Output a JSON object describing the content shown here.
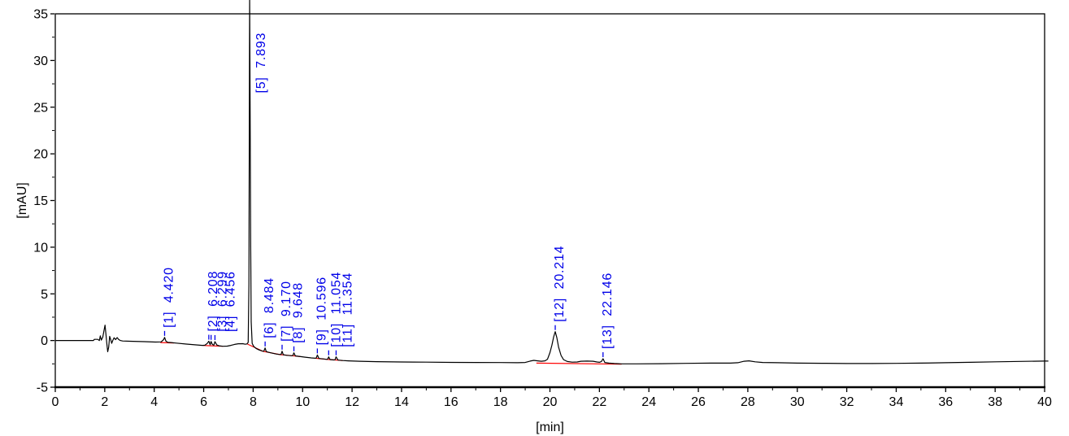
{
  "chart_data": {
    "type": "line",
    "title": "",
    "xlabel": "[min]",
    "ylabel": "[mAU]",
    "xlim": [
      0,
      40
    ],
    "ylim": [
      -5,
      35
    ],
    "x_major_ticks": [
      0,
      2,
      4,
      6,
      8,
      10,
      12,
      14,
      16,
      18,
      20,
      22,
      24,
      26,
      28,
      30,
      32,
      34,
      36,
      38,
      40
    ],
    "x_minor_step": 1,
    "y_major_ticks": [
      -5,
      0,
      5,
      10,
      15,
      20,
      25,
      30,
      35
    ],
    "y_minor_step": 2.5,
    "grid": false,
    "legend": "none",
    "colors": {
      "trace": "#000000",
      "axis": "#000000",
      "peak_label": "#0000e8",
      "integration_baseline": "#ff0000",
      "background": "#ffffff"
    },
    "peaks": [
      {
        "id": "[1]",
        "rt": "4.420",
        "t": 4.42,
        "apex": 0.33,
        "dx": 0
      },
      {
        "id": "[2]",
        "rt": "6.208",
        "t": 6.208,
        "apex": -0.08,
        "dx": 0
      },
      {
        "id": "[3]",
        "rt": "6.299",
        "t": 6.299,
        "apex": -0.1,
        "dx": 9
      },
      {
        "id": "[4]",
        "rt": "6.456",
        "t": 6.456,
        "apex": -0.12,
        "dx": 14
      },
      {
        "id": "[5]",
        "rt": "7.893",
        "t": 7.893,
        "apex": 37.0,
        "dx": 8,
        "ly": 26.5
      },
      {
        "id": "[6]",
        "rt": "8.484",
        "t": 8.484,
        "apex": -0.8,
        "dx": 0
      },
      {
        "id": "[7]",
        "rt": "9.170",
        "t": 9.17,
        "apex": -1.15,
        "dx": 0
      },
      {
        "id": "[8]",
        "rt": "9.648",
        "t": 9.648,
        "apex": -1.32,
        "dx": 0
      },
      {
        "id": "[9]",
        "rt": "10.596",
        "t": 10.596,
        "apex": -1.55,
        "dx": 0
      },
      {
        "id": "[10]",
        "rt": "11.054",
        "t": 11.054,
        "apex": -1.75,
        "dx": 4
      },
      {
        "id": "[11]",
        "rt": "11.354",
        "t": 11.354,
        "apex": -1.75,
        "dx": 9
      },
      {
        "id": "[12]",
        "rt": "20.214",
        "t": 20.214,
        "apex": 0.95,
        "dx": 0
      },
      {
        "id": "[13]",
        "rt": "22.146",
        "t": 22.146,
        "apex": -1.95,
        "dx": 0
      }
    ],
    "trace": [
      [
        0.0,
        0.0
      ],
      [
        1.54,
        0.0
      ],
      [
        1.58,
        0.12
      ],
      [
        1.72,
        0.12
      ],
      [
        1.78,
        0.0
      ],
      [
        1.82,
        0.5
      ],
      [
        1.86,
        0.05
      ],
      [
        1.92,
        0.35
      ],
      [
        1.97,
        1.05
      ],
      [
        2.01,
        1.65
      ],
      [
        2.05,
        0.6
      ],
      [
        2.08,
        -0.25
      ],
      [
        2.12,
        -1.2
      ],
      [
        2.16,
        -0.7
      ],
      [
        2.2,
        0.45
      ],
      [
        2.24,
        0.1
      ],
      [
        2.28,
        -0.3
      ],
      [
        2.33,
        0.05
      ],
      [
        2.38,
        0.3
      ],
      [
        2.44,
        0.1
      ],
      [
        2.5,
        0.32
      ],
      [
        2.56,
        0.12
      ],
      [
        2.63,
        0.0
      ],
      [
        2.72,
        -0.05
      ],
      [
        3.0,
        -0.08
      ],
      [
        3.6,
        -0.12
      ],
      [
        4.05,
        -0.16
      ],
      [
        4.28,
        -0.15
      ],
      [
        4.38,
        0.1
      ],
      [
        4.42,
        0.33
      ],
      [
        4.47,
        -0.05
      ],
      [
        4.55,
        -0.2
      ],
      [
        4.68,
        -0.22
      ],
      [
        4.9,
        -0.28
      ],
      [
        5.3,
        -0.38
      ],
      [
        5.7,
        -0.47
      ],
      [
        5.95,
        -0.52
      ],
      [
        6.05,
        -0.5
      ],
      [
        6.14,
        -0.32
      ],
      [
        6.208,
        -0.08
      ],
      [
        6.26,
        -0.45
      ],
      [
        6.299,
        -0.1
      ],
      [
        6.35,
        -0.42
      ],
      [
        6.41,
        -0.5
      ],
      [
        6.456,
        -0.12
      ],
      [
        6.53,
        -0.48
      ],
      [
        6.62,
        -0.56
      ],
      [
        6.78,
        -0.62
      ],
      [
        6.95,
        -0.6
      ],
      [
        7.1,
        -0.52
      ],
      [
        7.25,
        -0.42
      ],
      [
        7.4,
        -0.35
      ],
      [
        7.58,
        -0.34
      ],
      [
        7.68,
        -0.4
      ],
      [
        7.75,
        -0.36
      ],
      [
        7.8,
        -0.2
      ],
      [
        7.83,
        6.0
      ],
      [
        7.86,
        37.0
      ],
      [
        7.9,
        10.0
      ],
      [
        7.92,
        2.0
      ],
      [
        7.96,
        -0.3
      ],
      [
        8.02,
        -0.62
      ],
      [
        8.12,
        -0.85
      ],
      [
        8.25,
        -1.02
      ],
      [
        8.38,
        -1.14
      ],
      [
        8.43,
        -1.15
      ],
      [
        8.484,
        -0.8
      ],
      [
        8.53,
        -1.18
      ],
      [
        8.62,
        -1.26
      ],
      [
        8.78,
        -1.36
      ],
      [
        8.95,
        -1.45
      ],
      [
        9.08,
        -1.5
      ],
      [
        9.13,
        -1.48
      ],
      [
        9.17,
        -1.15
      ],
      [
        9.22,
        -1.52
      ],
      [
        9.36,
        -1.58
      ],
      [
        9.56,
        -1.63
      ],
      [
        9.6,
        -1.62
      ],
      [
        9.648,
        -1.32
      ],
      [
        9.71,
        -1.65
      ],
      [
        9.86,
        -1.7
      ],
      [
        10.1,
        -1.78
      ],
      [
        10.35,
        -1.86
      ],
      [
        10.51,
        -1.9
      ],
      [
        10.55,
        -1.88
      ],
      [
        10.596,
        -1.55
      ],
      [
        10.66,
        -1.92
      ],
      [
        10.82,
        -1.97
      ],
      [
        10.98,
        -2.02
      ],
      [
        11.01,
        -2.0
      ],
      [
        11.054,
        -1.75
      ],
      [
        11.11,
        -2.04
      ],
      [
        11.25,
        -2.08
      ],
      [
        11.31,
        -2.06
      ],
      [
        11.354,
        -1.75
      ],
      [
        11.43,
        -2.1
      ],
      [
        11.62,
        -2.14
      ],
      [
        11.85,
        -2.18
      ],
      [
        12.3,
        -2.22
      ],
      [
        13.0,
        -2.26
      ],
      [
        14.0,
        -2.3
      ],
      [
        15.0,
        -2.32
      ],
      [
        16.0,
        -2.34
      ],
      [
        17.0,
        -2.35
      ],
      [
        18.0,
        -2.36
      ],
      [
        18.7,
        -2.38
      ],
      [
        19.0,
        -2.35
      ],
      [
        19.2,
        -2.2
      ],
      [
        19.35,
        -2.12
      ],
      [
        19.5,
        -2.18
      ],
      [
        19.65,
        -2.22
      ],
      [
        19.8,
        -2.18
      ],
      [
        19.9,
        -2.0
      ],
      [
        20.0,
        -1.3
      ],
      [
        20.08,
        -0.5
      ],
      [
        20.15,
        0.4
      ],
      [
        20.214,
        0.95
      ],
      [
        20.28,
        0.3
      ],
      [
        20.35,
        -0.7
      ],
      [
        20.45,
        -1.6
      ],
      [
        20.55,
        -2.05
      ],
      [
        20.7,
        -2.25
      ],
      [
        20.9,
        -2.32
      ],
      [
        21.1,
        -2.3
      ],
      [
        21.25,
        -2.22
      ],
      [
        21.5,
        -2.2
      ],
      [
        21.75,
        -2.22
      ],
      [
        21.9,
        -2.3
      ],
      [
        22.0,
        -2.33
      ],
      [
        22.08,
        -2.25
      ],
      [
        22.146,
        -1.95
      ],
      [
        22.22,
        -2.35
      ],
      [
        22.38,
        -2.42
      ],
      [
        22.6,
        -2.46
      ],
      [
        22.9,
        -2.5
      ],
      [
        23.5,
        -2.5
      ],
      [
        24.5,
        -2.48
      ],
      [
        25.5,
        -2.45
      ],
      [
        26.5,
        -2.42
      ],
      [
        27.3,
        -2.42
      ],
      [
        27.6,
        -2.38
      ],
      [
        27.85,
        -2.22
      ],
      [
        28.05,
        -2.18
      ],
      [
        28.3,
        -2.28
      ],
      [
        28.6,
        -2.35
      ],
      [
        29.2,
        -2.38
      ],
      [
        30.0,
        -2.42
      ],
      [
        31.0,
        -2.44
      ],
      [
        32.0,
        -2.46
      ],
      [
        33.0,
        -2.46
      ],
      [
        34.0,
        -2.45
      ],
      [
        35.0,
        -2.42
      ],
      [
        36.0,
        -2.38
      ],
      [
        37.0,
        -2.33
      ],
      [
        38.0,
        -2.28
      ],
      [
        39.0,
        -2.24
      ],
      [
        40.0,
        -2.2
      ],
      [
        40.15,
        -2.2
      ]
    ],
    "baseline_segments": [
      [
        [
          4.25,
          -0.22
        ],
        [
          4.8,
          -0.26
        ]
      ],
      [
        [
          5.97,
          -0.53
        ],
        [
          6.78,
          -0.62
        ]
      ],
      [
        [
          7.77,
          -0.38
        ],
        [
          8.4,
          -1.16
        ],
        [
          8.62,
          -1.27
        ],
        [
          9.1,
          -1.51
        ],
        [
          9.24,
          -1.54
        ],
        [
          9.57,
          -1.63
        ],
        [
          9.72,
          -1.66
        ],
        [
          9.9,
          -1.72
        ]
      ],
      [
        [
          10.52,
          -1.9
        ],
        [
          10.67,
          -1.94
        ],
        [
          11.0,
          -2.02
        ],
        [
          11.12,
          -2.05
        ],
        [
          11.3,
          -2.08
        ],
        [
          11.45,
          -2.11
        ],
        [
          11.62,
          -2.15
        ]
      ],
      [
        [
          19.45,
          -2.42
        ],
        [
          22.9,
          -2.53
        ]
      ]
    ]
  }
}
